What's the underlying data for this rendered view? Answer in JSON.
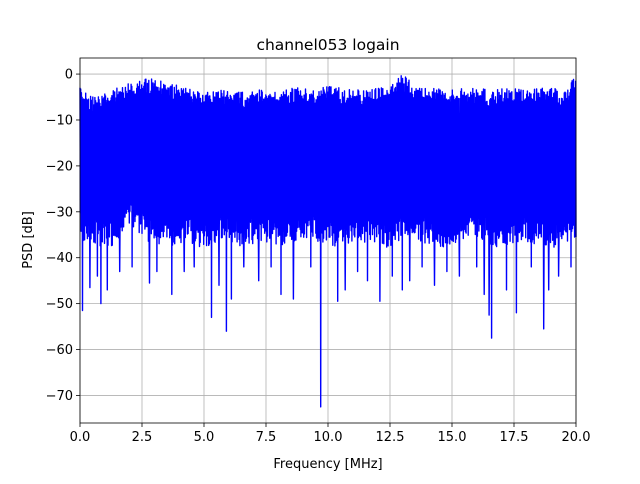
{
  "chart_data": {
    "type": "line",
    "title": "channel053 logain",
    "xlabel": "Frequency [MHz]",
    "ylabel": "PSD [dB]",
    "xlim": [
      0,
      20
    ],
    "ylim": [
      -76,
      3.5
    ],
    "x_ticks": [
      0,
      2.5,
      5,
      7.5,
      10,
      12.5,
      15,
      17.5,
      20
    ],
    "x_tick_labels": [
      "0.0",
      "2.5",
      "5.0",
      "7.5",
      "10.0",
      "12.5",
      "15.0",
      "17.5",
      "20.0"
    ],
    "y_ticks": [
      0,
      -10,
      -20,
      -30,
      -40,
      -50,
      -60,
      -70
    ],
    "y_tick_labels": [
      "0",
      "−10",
      "−20",
      "−30",
      "−40",
      "−50",
      "−60",
      "−70"
    ],
    "grid": true,
    "series": [
      {
        "color": "#0000ff",
        "upper_envelope": {
          "x": [
            0,
            0.5,
            1.0,
            1.5,
            2.0,
            2.3,
            2.5,
            3.0,
            3.5,
            4.0,
            4.5,
            5.0,
            5.5,
            6.0,
            6.5,
            7.0,
            7.5,
            8.0,
            8.5,
            9.0,
            9.5,
            10.0,
            10.5,
            11.0,
            11.5,
            12.0,
            12.5,
            13.0,
            13.5,
            14.0,
            14.5,
            15.0,
            15.5,
            16.0,
            16.5,
            17.0,
            17.5,
            18.0,
            18.5,
            19.0,
            19.5,
            20.0
          ],
          "y": [
            -3,
            -5,
            -4,
            -3,
            -2,
            -1,
            -0.5,
            -1,
            -2,
            -2.5,
            -3,
            -4,
            -3.5,
            -3,
            -4,
            -3.5,
            -3,
            -4,
            -3,
            -3,
            -3.5,
            -2.5,
            -3,
            -3,
            -3.5,
            -3,
            -2.5,
            0,
            -2.5,
            -3,
            -3,
            -3.5,
            -3,
            -3,
            -3.5,
            -3,
            -3,
            -3.5,
            -3,
            -3,
            -3.5,
            -0.5
          ]
        },
        "lower_envelope": {
          "x": [
            0,
            0.5,
            1.0,
            1.5,
            2.0,
            2.5,
            3.0,
            3.5,
            4.0,
            4.5,
            5.0,
            5.5,
            6.0,
            6.5,
            7.0,
            7.5,
            8.0,
            8.5,
            9.0,
            9.5,
            10.0,
            10.5,
            11.0,
            11.5,
            12.0,
            12.5,
            13.0,
            13.5,
            14.0,
            14.5,
            15.0,
            15.5,
            16.0,
            16.5,
            17.0,
            17.5,
            18.0,
            18.5,
            19.0,
            19.5,
            20.0
          ],
          "y": [
            -36,
            -37,
            -38,
            -37,
            -33,
            -36,
            -37,
            -38,
            -37,
            -37,
            -38,
            -37,
            -37,
            -38,
            -37,
            -37,
            -38,
            -37,
            -36,
            -37,
            -37,
            -38,
            -37,
            -37,
            -37,
            -38,
            -37,
            -36,
            -37,
            -38,
            -37,
            -37,
            -36,
            -37,
            -38,
            -37,
            -37,
            -37,
            -38,
            -37,
            -36
          ]
        },
        "dips": [
          {
            "x": 0.1,
            "y": -51.5
          },
          {
            "x": 0.4,
            "y": -46.5
          },
          {
            "x": 0.7,
            "y": -44
          },
          {
            "x": 0.85,
            "y": -50
          },
          {
            "x": 1.1,
            "y": -47
          },
          {
            "x": 1.6,
            "y": -43
          },
          {
            "x": 2.1,
            "y": -42
          },
          {
            "x": 2.8,
            "y": -45.5
          },
          {
            "x": 3.1,
            "y": -43
          },
          {
            "x": 3.7,
            "y": -48
          },
          {
            "x": 4.2,
            "y": -43
          },
          {
            "x": 4.6,
            "y": -42
          },
          {
            "x": 5.3,
            "y": -53
          },
          {
            "x": 5.6,
            "y": -46
          },
          {
            "x": 5.9,
            "y": -56
          },
          {
            "x": 6.1,
            "y": -49
          },
          {
            "x": 6.6,
            "y": -42
          },
          {
            "x": 7.2,
            "y": -45
          },
          {
            "x": 7.7,
            "y": -42
          },
          {
            "x": 8.1,
            "y": -48
          },
          {
            "x": 8.6,
            "y": -49
          },
          {
            "x": 9.3,
            "y": -42
          },
          {
            "x": 9.7,
            "y": -72.5
          },
          {
            "x": 10.4,
            "y": -49.5
          },
          {
            "x": 10.7,
            "y": -47
          },
          {
            "x": 11.2,
            "y": -43
          },
          {
            "x": 11.6,
            "y": -45
          },
          {
            "x": 12.1,
            "y": -49.5
          },
          {
            "x": 12.6,
            "y": -44
          },
          {
            "x": 13.0,
            "y": -47
          },
          {
            "x": 13.3,
            "y": -45
          },
          {
            "x": 13.8,
            "y": -42
          },
          {
            "x": 14.3,
            "y": -46
          },
          {
            "x": 14.8,
            "y": -43
          },
          {
            "x": 15.3,
            "y": -44
          },
          {
            "x": 16.0,
            "y": -42
          },
          {
            "x": 16.3,
            "y": -48
          },
          {
            "x": 16.5,
            "y": -52.5
          },
          {
            "x": 16.6,
            "y": -57.5
          },
          {
            "x": 17.2,
            "y": -47
          },
          {
            "x": 17.6,
            "y": -52
          },
          {
            "x": 18.2,
            "y": -42
          },
          {
            "x": 18.7,
            "y": -55.5
          },
          {
            "x": 18.9,
            "y": -47
          },
          {
            "x": 19.3,
            "y": -44
          },
          {
            "x": 19.8,
            "y": -42
          }
        ]
      }
    ]
  }
}
